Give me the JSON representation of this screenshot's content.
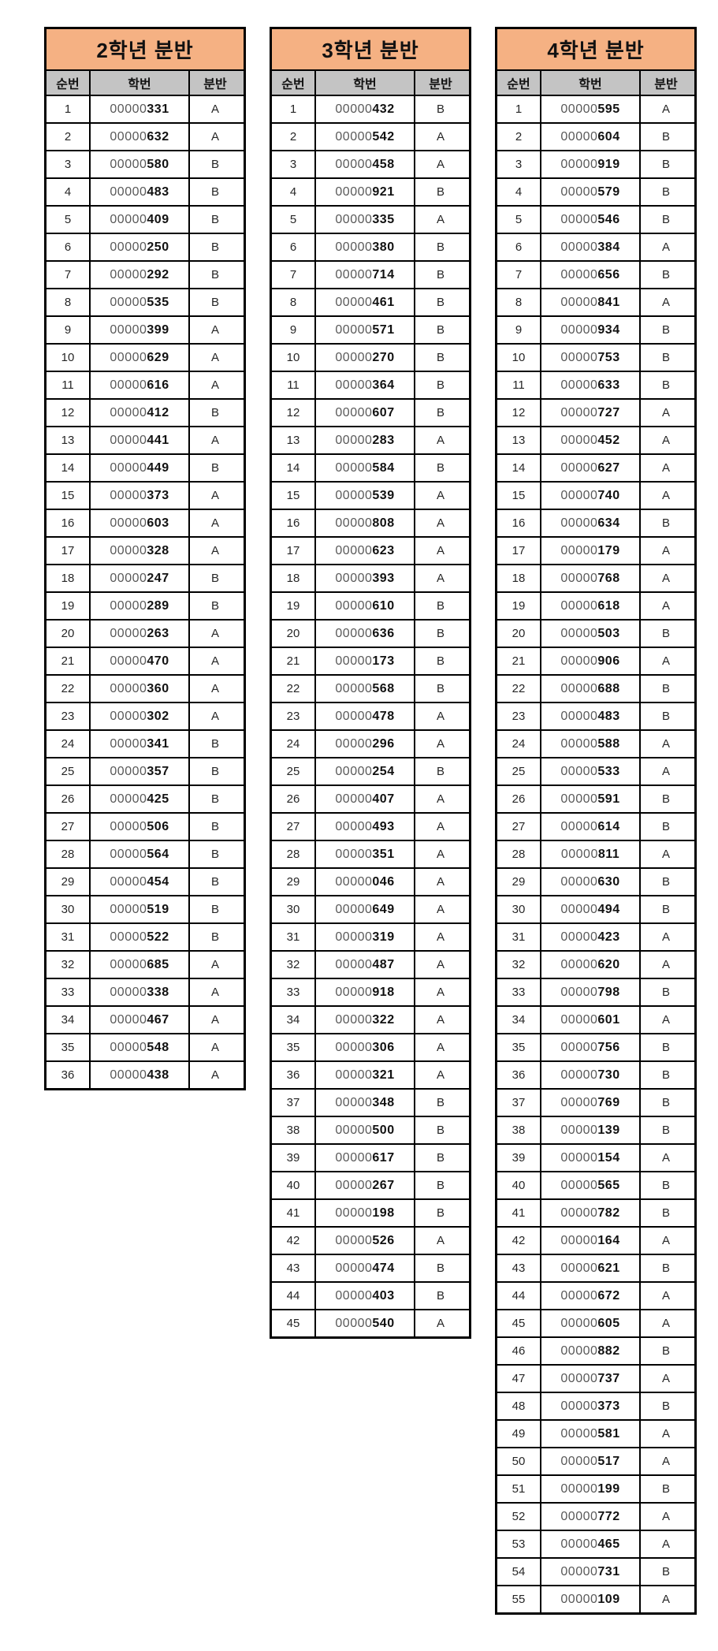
{
  "columns": [
    "순번",
    "학번",
    "분반"
  ],
  "id_prefix": "00000",
  "colors": {
    "title_bg": "#F5B183",
    "header_bg": "#C4C4C4",
    "border": "#000000",
    "page_bg": "#FFFFFF"
  },
  "tables": [
    {
      "title": "2학년 분반",
      "rows": [
        [
          1,
          "331",
          "A"
        ],
        [
          2,
          "632",
          "A"
        ],
        [
          3,
          "580",
          "B"
        ],
        [
          4,
          "483",
          "B"
        ],
        [
          5,
          "409",
          "B"
        ],
        [
          6,
          "250",
          "B"
        ],
        [
          7,
          "292",
          "B"
        ],
        [
          8,
          "535",
          "B"
        ],
        [
          9,
          "399",
          "A"
        ],
        [
          10,
          "629",
          "A"
        ],
        [
          11,
          "616",
          "A"
        ],
        [
          12,
          "412",
          "B"
        ],
        [
          13,
          "441",
          "A"
        ],
        [
          14,
          "449",
          "B"
        ],
        [
          15,
          "373",
          "A"
        ],
        [
          16,
          "603",
          "A"
        ],
        [
          17,
          "328",
          "A"
        ],
        [
          18,
          "247",
          "B"
        ],
        [
          19,
          "289",
          "B"
        ],
        [
          20,
          "263",
          "A"
        ],
        [
          21,
          "470",
          "A"
        ],
        [
          22,
          "360",
          "A"
        ],
        [
          23,
          "302",
          "A"
        ],
        [
          24,
          "341",
          "B"
        ],
        [
          25,
          "357",
          "B"
        ],
        [
          26,
          "425",
          "B"
        ],
        [
          27,
          "506",
          "B"
        ],
        [
          28,
          "564",
          "B"
        ],
        [
          29,
          "454",
          "B"
        ],
        [
          30,
          "519",
          "B"
        ],
        [
          31,
          "522",
          "B"
        ],
        [
          32,
          "685",
          "A"
        ],
        [
          33,
          "338",
          "A"
        ],
        [
          34,
          "467",
          "A"
        ],
        [
          35,
          "548",
          "A"
        ],
        [
          36,
          "438",
          "A"
        ]
      ]
    },
    {
      "title": "3학년 분반",
      "rows": [
        [
          1,
          "432",
          "B"
        ],
        [
          2,
          "542",
          "A"
        ],
        [
          3,
          "458",
          "A"
        ],
        [
          4,
          "921",
          "B"
        ],
        [
          5,
          "335",
          "A"
        ],
        [
          6,
          "380",
          "B"
        ],
        [
          7,
          "714",
          "B"
        ],
        [
          8,
          "461",
          "B"
        ],
        [
          9,
          "571",
          "B"
        ],
        [
          10,
          "270",
          "B"
        ],
        [
          11,
          "364",
          "B"
        ],
        [
          12,
          "607",
          "B"
        ],
        [
          13,
          "283",
          "A"
        ],
        [
          14,
          "584",
          "B"
        ],
        [
          15,
          "539",
          "A"
        ],
        [
          16,
          "808",
          "A"
        ],
        [
          17,
          "623",
          "A"
        ],
        [
          18,
          "393",
          "A"
        ],
        [
          19,
          "610",
          "B"
        ],
        [
          20,
          "636",
          "B"
        ],
        [
          21,
          "173",
          "B"
        ],
        [
          22,
          "568",
          "B"
        ],
        [
          23,
          "478",
          "A"
        ],
        [
          24,
          "296",
          "A"
        ],
        [
          25,
          "254",
          "B"
        ],
        [
          26,
          "407",
          "A"
        ],
        [
          27,
          "493",
          "A"
        ],
        [
          28,
          "351",
          "A"
        ],
        [
          29,
          "046",
          "A"
        ],
        [
          30,
          "649",
          "A"
        ],
        [
          31,
          "319",
          "A"
        ],
        [
          32,
          "487",
          "A"
        ],
        [
          33,
          "918",
          "A"
        ],
        [
          34,
          "322",
          "A"
        ],
        [
          35,
          "306",
          "A"
        ],
        [
          36,
          "321",
          "A"
        ],
        [
          37,
          "348",
          "B"
        ],
        [
          38,
          "500",
          "B"
        ],
        [
          39,
          "617",
          "B"
        ],
        [
          40,
          "267",
          "B"
        ],
        [
          41,
          "198",
          "B"
        ],
        [
          42,
          "526",
          "A"
        ],
        [
          43,
          "474",
          "B"
        ],
        [
          44,
          "403",
          "B"
        ],
        [
          45,
          "540",
          "A"
        ]
      ]
    },
    {
      "title": "4학년 분반",
      "rows": [
        [
          1,
          "595",
          "A"
        ],
        [
          2,
          "604",
          "B"
        ],
        [
          3,
          "919",
          "B"
        ],
        [
          4,
          "579",
          "B"
        ],
        [
          5,
          "546",
          "B"
        ],
        [
          6,
          "384",
          "A"
        ],
        [
          7,
          "656",
          "B"
        ],
        [
          8,
          "841",
          "A"
        ],
        [
          9,
          "934",
          "B"
        ],
        [
          10,
          "753",
          "B"
        ],
        [
          11,
          "633",
          "B"
        ],
        [
          12,
          "727",
          "A"
        ],
        [
          13,
          "452",
          "A"
        ],
        [
          14,
          "627",
          "A"
        ],
        [
          15,
          "740",
          "A"
        ],
        [
          16,
          "634",
          "B"
        ],
        [
          17,
          "179",
          "A"
        ],
        [
          18,
          "768",
          "A"
        ],
        [
          19,
          "618",
          "A"
        ],
        [
          20,
          "503",
          "B"
        ],
        [
          21,
          "906",
          "A"
        ],
        [
          22,
          "688",
          "B"
        ],
        [
          23,
          "483",
          "B"
        ],
        [
          24,
          "588",
          "A"
        ],
        [
          25,
          "533",
          "A"
        ],
        [
          26,
          "591",
          "B"
        ],
        [
          27,
          "614",
          "B"
        ],
        [
          28,
          "811",
          "A"
        ],
        [
          29,
          "630",
          "B"
        ],
        [
          30,
          "494",
          "B"
        ],
        [
          31,
          "423",
          "A"
        ],
        [
          32,
          "620",
          "A"
        ],
        [
          33,
          "798",
          "B"
        ],
        [
          34,
          "601",
          "A"
        ],
        [
          35,
          "756",
          "B"
        ],
        [
          36,
          "730",
          "B"
        ],
        [
          37,
          "769",
          "B"
        ],
        [
          38,
          "139",
          "B"
        ],
        [
          39,
          "154",
          "A"
        ],
        [
          40,
          "565",
          "B"
        ],
        [
          41,
          "782",
          "B"
        ],
        [
          42,
          "164",
          "A"
        ],
        [
          43,
          "621",
          "B"
        ],
        [
          44,
          "672",
          "A"
        ],
        [
          45,
          "605",
          "A"
        ],
        [
          46,
          "882",
          "B"
        ],
        [
          47,
          "737",
          "A"
        ],
        [
          48,
          "373",
          "B"
        ],
        [
          49,
          "581",
          "A"
        ],
        [
          50,
          "517",
          "A"
        ],
        [
          51,
          "199",
          "B"
        ],
        [
          52,
          "772",
          "A"
        ],
        [
          53,
          "465",
          "A"
        ],
        [
          54,
          "731",
          "B"
        ],
        [
          55,
          "109",
          "A"
        ]
      ]
    }
  ]
}
